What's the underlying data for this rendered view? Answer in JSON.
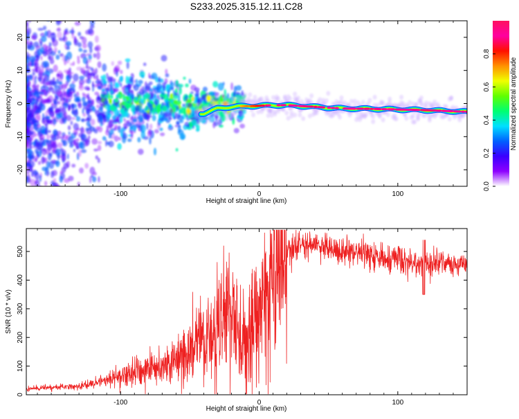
{
  "title": "S233.2025.315.12.11.C28",
  "chart_data": [
    {
      "type": "heatmap",
      "xlabel": "Height of straight line (km)",
      "ylabel": "Frequency (Hz)",
      "xlim": [
        -168,
        150
      ],
      "ylim": [
        -25,
        25
      ],
      "xticks": [
        -100,
        0,
        100
      ],
      "yticks": [
        -20,
        -10,
        0,
        10,
        20
      ],
      "colorbar": {
        "label": "Normalized spectral amplitude",
        "range": [
          0,
          1
        ],
        "ticks": [
          "0.0",
          "0.2",
          "0.4",
          "0.6",
          "0.8"
        ],
        "tick_values": [
          0,
          0.2,
          0.4,
          0.6,
          0.8
        ],
        "colors": [
          "#ffffff",
          "#8d00ff",
          "#3a00ff",
          "#0060ff",
          "#00e0ff",
          "#00ff70",
          "#60ff00",
          "#f0ff00",
          "#ff9000",
          "#ff1000",
          "#ff00a0",
          "#ff1060"
        ]
      },
      "ridge": {
        "x": [
          -40,
          -30,
          -20,
          -10,
          0,
          10,
          20,
          40,
          60,
          80,
          100,
          120,
          150
        ],
        "freq": [
          -3,
          -1.5,
          -1.0,
          -0.8,
          -0.7,
          -0.5,
          -0.5,
          -1.0,
          -1.5,
          -1.6,
          -1.8,
          -2.0,
          -2.5
        ],
        "amplitude": [
          0.3,
          0.4,
          0.5,
          0.65,
          0.75,
          0.85,
          0.85,
          0.8,
          0.85,
          0.8,
          0.85,
          0.8,
          0.85
        ]
      }
    },
    {
      "type": "line",
      "xlabel": "Height of straight line (km)",
      "ylabel": "SNR (10 * v/v)",
      "xlim": [
        -168,
        150
      ],
      "ylim": [
        0,
        580
      ],
      "xticks": [
        -100,
        0,
        100
      ],
      "yticks": [
        0,
        100,
        200,
        300,
        400,
        500
      ],
      "color": "#ee2020",
      "series": [
        {
          "name": "SNR",
          "x": [
            -168,
            -150,
            -130,
            -115,
            -100,
            -85,
            -70,
            -60,
            -50,
            -40,
            -30,
            -20,
            -10,
            0,
            10,
            20,
            30,
            40,
            60,
            80,
            100,
            120,
            130,
            150
          ],
          "values": [
            20,
            25,
            30,
            45,
            70,
            85,
            100,
            120,
            150,
            190,
            230,
            270,
            220,
            290,
            420,
            500,
            525,
            520,
            505,
            490,
            470,
            455,
            455,
            460
          ]
        }
      ]
    }
  ]
}
